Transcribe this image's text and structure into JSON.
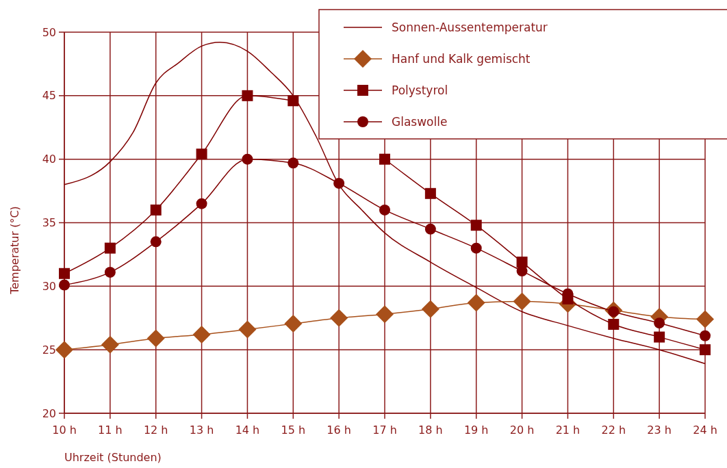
{
  "chart_data": {
    "type": "line",
    "xlabel": "Uhrzeit (Stunden)",
    "ylabel": "Temperatur (°C)",
    "xlim": [
      10,
      24
    ],
    "ylim": [
      20,
      50
    ],
    "xticks": [
      {
        "value": 10,
        "label": "10 h"
      },
      {
        "value": 11,
        "label": "11 h"
      },
      {
        "value": 12,
        "label": "12 h"
      },
      {
        "value": 13,
        "label": "13 h"
      },
      {
        "value": 14,
        "label": "14 h"
      },
      {
        "value": 15,
        "label": "15 h"
      },
      {
        "value": 16,
        "label": "16 h"
      },
      {
        "value": 17,
        "label": "17 h"
      },
      {
        "value": 18,
        "label": "18 h"
      },
      {
        "value": 19,
        "label": "19 h"
      },
      {
        "value": 20,
        "label": "20 h"
      },
      {
        "value": 21,
        "label": "21 h"
      },
      {
        "value": 22,
        "label": "22 h"
      },
      {
        "value": 23,
        "label": "23 h"
      },
      {
        "value": 24,
        "label": "24 h"
      }
    ],
    "yticks": [
      20,
      25,
      30,
      35,
      40,
      45,
      50
    ],
    "grid": true,
    "legend": "top right",
    "x": [
      10,
      11,
      12,
      13,
      14,
      15,
      16,
      17,
      18,
      19,
      20,
      21,
      22,
      23,
      24
    ],
    "series": [
      {
        "name": "Sonnen-Aussentemperatur",
        "color": "#800000",
        "marker": "none",
        "x": [
          10,
          11,
          11.5,
          12,
          12.5,
          13,
          13.4,
          14,
          14.5,
          15,
          15.5,
          16,
          16.5,
          17,
          18,
          19,
          20,
          21,
          22,
          23,
          24
        ],
        "values": [
          38,
          39.8,
          42.1,
          46,
          47.6,
          48.9,
          49.2,
          48.5,
          46.9,
          45,
          41.8,
          38,
          36,
          34.2,
          31.9,
          29.9,
          28,
          26.9,
          25.9,
          25,
          23.9
        ]
      },
      {
        "name": "Hanf und Kalk gemischt",
        "color": "#a8501a",
        "marker": "diamond",
        "values": [
          25,
          25.4,
          25.9,
          26.2,
          26.6,
          27.05,
          27.5,
          27.8,
          28.2,
          28.7,
          28.8,
          28.6,
          28.1,
          27.6,
          27.4
        ]
      },
      {
        "name": "Polystyrol",
        "color": "#800000",
        "marker": "square",
        "values": [
          31,
          33,
          36,
          40.4,
          45,
          44.6,
          null,
          40,
          37.3,
          34.8,
          31.9,
          29,
          27,
          26,
          25
        ]
      },
      {
        "name": "Glaswolle",
        "color": "#800000",
        "marker": "circle",
        "values": [
          30.1,
          31.1,
          33.5,
          36.5,
          40,
          39.7,
          38.1,
          36,
          34.5,
          33,
          31.2,
          29.4,
          28,
          27.1,
          26.1
        ]
      }
    ]
  }
}
